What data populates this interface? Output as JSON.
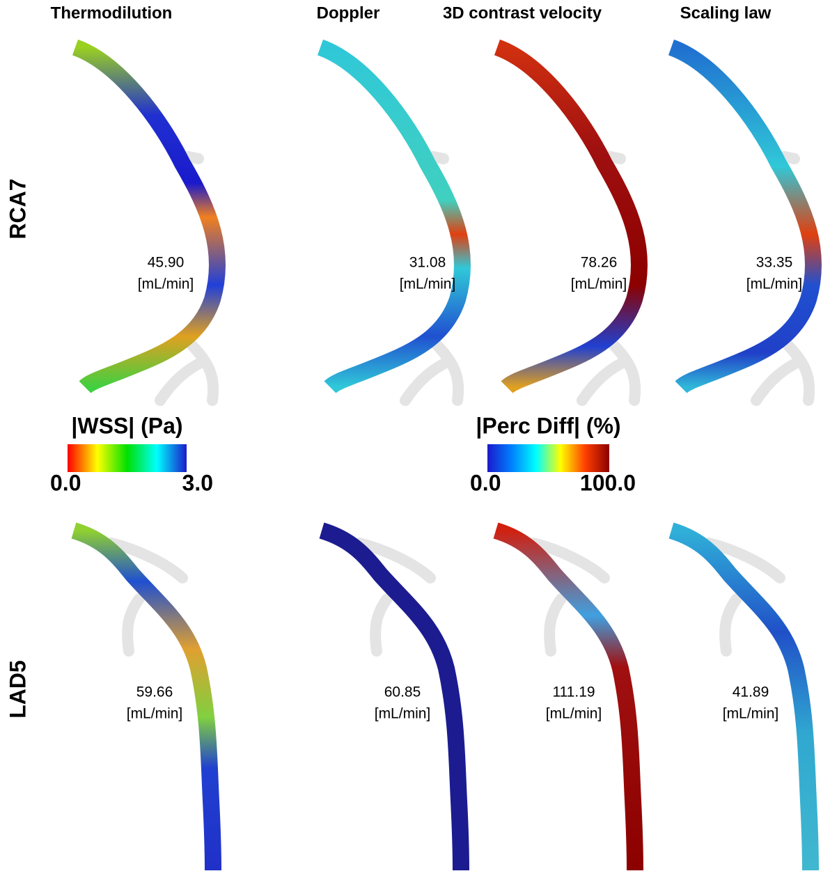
{
  "columns": [
    "Thermodilution",
    "Doppler",
    "3D contrast velocity",
    "Scaling law"
  ],
  "rows": [
    {
      "label": "RCA7",
      "panels": [
        {
          "value": "45.90",
          "unit": "[mL/min]"
        },
        {
          "value": "31.08",
          "unit": "[mL/min]"
        },
        {
          "value": "78.26",
          "unit": "[mL/min]"
        },
        {
          "value": "33.35",
          "unit": "[mL/min]"
        }
      ]
    },
    {
      "label": "LAD5",
      "panels": [
        {
          "value": "59.66",
          "unit": "[mL/min]"
        },
        {
          "value": "60.85",
          "unit": "[mL/min]"
        },
        {
          "value": "111.19",
          "unit": "[mL/min]"
        },
        {
          "value": "41.89",
          "unit": "[mL/min]"
        }
      ]
    }
  ],
  "colorbars": [
    {
      "title": "|WSS| (Pa)",
      "min": "0.0",
      "max": "3.0",
      "colors": [
        "#ff0000",
        "#ffff00",
        "#00e000",
        "#00ffff",
        "#1a1acc"
      ]
    },
    {
      "title": "|Perc Diff| (%)",
      "min": "0.0",
      "max": "100.0",
      "colors": [
        "#1a1acc",
        "#0080ff",
        "#00ffff",
        "#ffff00",
        "#ff4000",
        "#8c0000"
      ]
    }
  ]
}
